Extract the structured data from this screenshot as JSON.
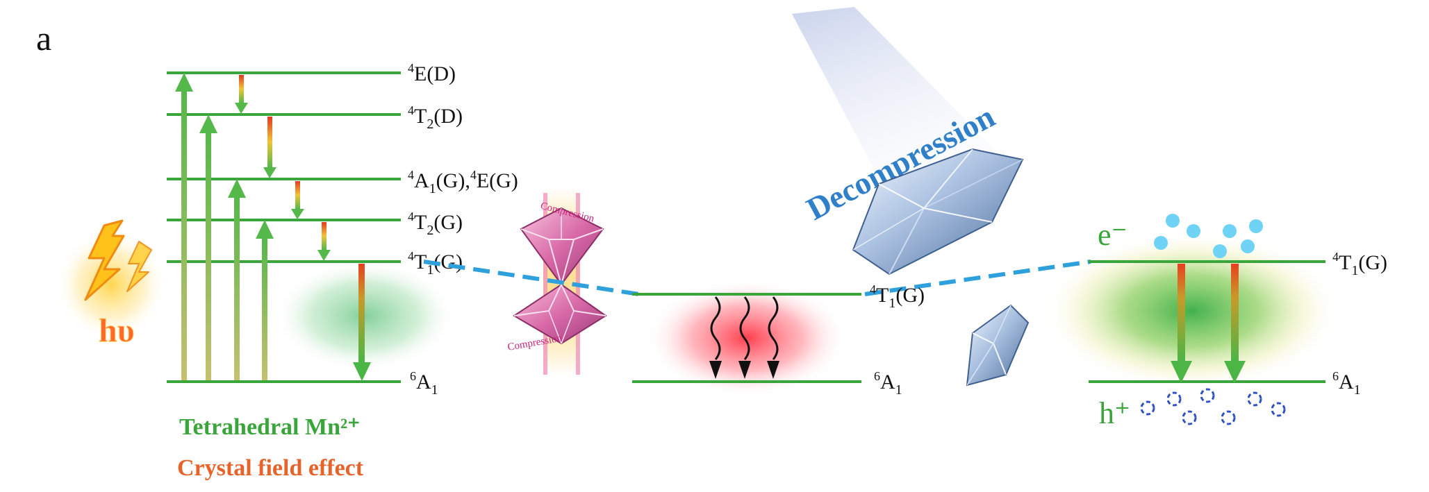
{
  "panel_label": "a",
  "left_levels": {
    "e_d": {
      "sup": "4",
      "main": "E(D)"
    },
    "t2_d": {
      "sup": "4",
      "main": "T",
      "sub": "2",
      "tail": "(D)"
    },
    "a1g_eg": {
      "sup": "4",
      "main": "A",
      "sub": "1",
      "tail": "(G),",
      "sup2": "4",
      "tail2": "E(G)"
    },
    "t2_g": {
      "sup": "4",
      "main": "T",
      "sub": "2",
      "tail": "(G)"
    },
    "t1_g": {
      "sup": "4",
      "main": "T",
      "sub": "1",
      "tail": "(G)"
    },
    "a1": {
      "sup": "6",
      "main": "A",
      "sub": "1"
    }
  },
  "middle_levels": {
    "t1_g": {
      "sup": "4",
      "main": "T",
      "sub": "1",
      "tail": "(G)"
    },
    "a1": {
      "sup": "6",
      "main": "A",
      "sub": "1"
    }
  },
  "right_levels": {
    "t1_g": {
      "sup": "4",
      "main": "T",
      "sub": "1",
      "tail": "(G)"
    },
    "a1": {
      "sup": "6",
      "main": "A",
      "sub": "1"
    }
  },
  "excitation_symbol": "hυ",
  "caption_line1": "Tetrahedral  Mn²⁺",
  "caption_line2": "Crystal field effect",
  "compression_label": "Compression",
  "decompression_label": "Decompression",
  "electron_label": "e⁻",
  "hole_label": "h⁺",
  "colors": {
    "level_green": "#3aa53a",
    "dash_blue": "#2ea0dc",
    "caption_green": "#3aa53a",
    "caption_orange": "#e8632a",
    "decompression_blue": "#2f7fc9",
    "electron_cyan": "#6fd3f5",
    "hole_blue": "#2f52c4"
  }
}
